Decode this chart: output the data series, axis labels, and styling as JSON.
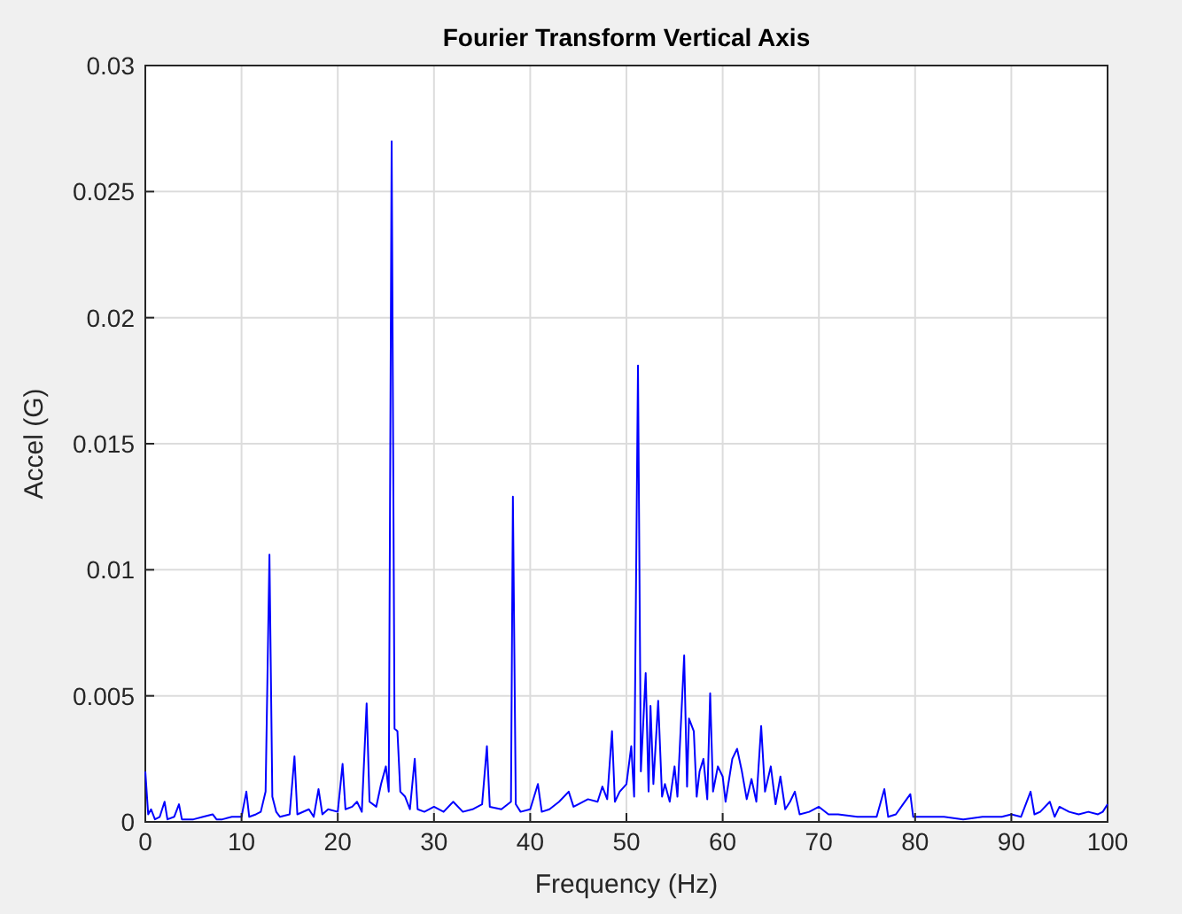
{
  "chart_data": {
    "type": "line",
    "title": "Fourier Transform  Vertical Axis",
    "xlabel": "Frequency (Hz)",
    "ylabel": "Accel (G)",
    "xlim": [
      0,
      100
    ],
    "xticks": [
      0,
      10,
      20,
      30,
      40,
      50,
      60,
      70,
      80,
      90,
      100
    ],
    "ylim": [
      0,
      0.03
    ],
    "yticks": [
      0,
      0.005,
      0.01,
      0.015,
      0.02,
      0.025,
      0.03
    ],
    "grid": true,
    "line_style": "solid",
    "series": [
      {
        "color": "#0000ff",
        "x": [
          0,
          0.3,
          0.6,
          1,
          1.5,
          2,
          2.3,
          3,
          3.5,
          3.8,
          5,
          6,
          7,
          7.4,
          8,
          9,
          10,
          10.5,
          10.8,
          11.5,
          12,
          12.5,
          12.9,
          13.2,
          13.6,
          14,
          15,
          15.5,
          15.8,
          17,
          17.5,
          18,
          18.4,
          19,
          20,
          20.5,
          20.8,
          21.5,
          22,
          22.5,
          23,
          23.3,
          24,
          24.5,
          25,
          25.3,
          25.6,
          25.9,
          26.2,
          26.5,
          27,
          27.5,
          28,
          28.3,
          29,
          30,
          31,
          32,
          33,
          34,
          35,
          35.5,
          35.8,
          37,
          38,
          38.2,
          38.5,
          39,
          40,
          40.8,
          41.2,
          42,
          43,
          44,
          44.5,
          45,
          46,
          47,
          47.5,
          48,
          48.5,
          48.8,
          49.3,
          50,
          50.5,
          50.8,
          51.2,
          51.5,
          52,
          52.3,
          52.5,
          52.8,
          53.3,
          53.7,
          54,
          54.5,
          55,
          55.3,
          56,
          56.3,
          56.5,
          57,
          57.3,
          57.6,
          58,
          58.4,
          58.7,
          59,
          59.5,
          60,
          60.3,
          61,
          61.5,
          62,
          62.5,
          63,
          63.5,
          64,
          64.4,
          65,
          65.5,
          66,
          66.5,
          67,
          67.5,
          68,
          69,
          70,
          71,
          72,
          74,
          76,
          76.8,
          77.2,
          78,
          79.5,
          79.8,
          81,
          83,
          85,
          87,
          89,
          90,
          91,
          92,
          92.4,
          93,
          94,
          94.5,
          95,
          96,
          97,
          98,
          99,
          99.5,
          100
        ],
        "values": [
          0.002,
          0.0003,
          0.0005,
          0.0001,
          0.0002,
          0.0008,
          0.0001,
          0.0002,
          0.0007,
          0.0001,
          0.0001,
          0.0002,
          0.0003,
          0.0001,
          0.0001,
          0.0002,
          0.0002,
          0.0012,
          0.0002,
          0.0003,
          0.0004,
          0.0012,
          0.0106,
          0.001,
          0.0004,
          0.0002,
          0.0003,
          0.0026,
          0.0003,
          0.0005,
          0.0002,
          0.0013,
          0.0003,
          0.0005,
          0.0004,
          0.0023,
          0.0005,
          0.0006,
          0.0008,
          0.0004,
          0.0047,
          0.0008,
          0.0006,
          0.0015,
          0.0022,
          0.0012,
          0.027,
          0.0037,
          0.0036,
          0.0012,
          0.001,
          0.0005,
          0.0025,
          0.0005,
          0.0004,
          0.0006,
          0.0004,
          0.0008,
          0.0004,
          0.0005,
          0.0007,
          0.003,
          0.0006,
          0.0005,
          0.0008,
          0.0129,
          0.0007,
          0.0004,
          0.0005,
          0.0015,
          0.0004,
          0.0005,
          0.0008,
          0.0012,
          0.0006,
          0.0007,
          0.0009,
          0.0008,
          0.0014,
          0.0009,
          0.0036,
          0.0008,
          0.0012,
          0.0015,
          0.003,
          0.001,
          0.0181,
          0.002,
          0.0059,
          0.0012,
          0.0046,
          0.0015,
          0.0048,
          0.001,
          0.0015,
          0.0008,
          0.0022,
          0.001,
          0.0066,
          0.0014,
          0.0041,
          0.0036,
          0.001,
          0.002,
          0.0025,
          0.0009,
          0.0051,
          0.0012,
          0.0022,
          0.0018,
          0.0008,
          0.0025,
          0.0029,
          0.002,
          0.0009,
          0.0017,
          0.0008,
          0.0038,
          0.0012,
          0.0022,
          0.0007,
          0.0018,
          0.0005,
          0.0008,
          0.0012,
          0.0003,
          0.0004,
          0.0006,
          0.0003,
          0.0003,
          0.0002,
          0.0002,
          0.0013,
          0.0002,
          0.0003,
          0.0011,
          0.0002,
          0.0002,
          0.0002,
          0.0001,
          0.0002,
          0.0002,
          0.0003,
          0.0002,
          0.0012,
          0.0003,
          0.0004,
          0.0008,
          0.0002,
          0.0006,
          0.0004,
          0.0003,
          0.0004,
          0.0003,
          0.0004,
          0.0007
        ]
      }
    ]
  }
}
